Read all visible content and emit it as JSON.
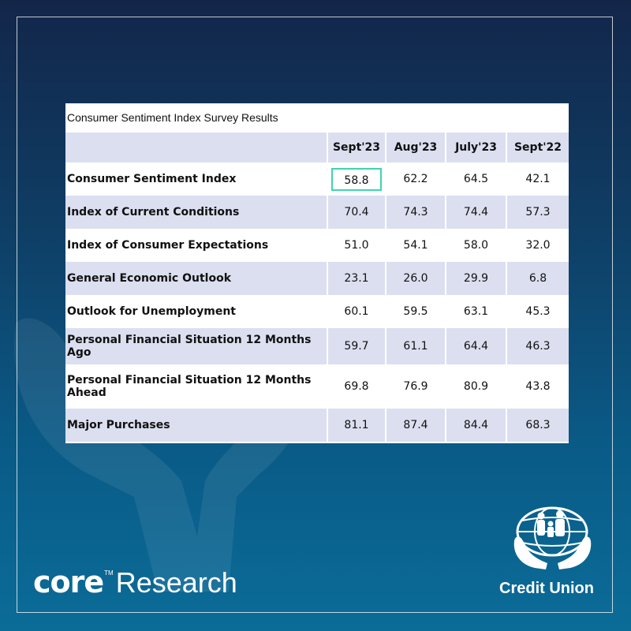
{
  "table": {
    "title": "Consumer Sentiment Index Survey Results",
    "columns": [
      "",
      "Sept'23",
      "Aug'23",
      "July'23",
      "Sept'22"
    ],
    "rows": [
      {
        "label": "Consumer Sentiment Index",
        "values": [
          "58.8",
          "62.2",
          "64.5",
          "42.1"
        ],
        "highlight_first": true
      },
      {
        "label": "Index of Current Conditions",
        "values": [
          "70.4",
          "74.3",
          "74.4",
          "57.3"
        ]
      },
      {
        "label": "Index of Consumer Expectations",
        "values": [
          "51.0",
          "54.1",
          "58.0",
          "32.0"
        ]
      },
      {
        "label": "General Economic Outlook",
        "values": [
          "23.1",
          "26.0",
          "29.9",
          "6.8"
        ]
      },
      {
        "label": "Outlook for Unemployment",
        "values": [
          "60.1",
          "59.5",
          "63.1",
          "45.3"
        ]
      },
      {
        "label": "Personal Financial Situation 12 Months Ago",
        "values": [
          "59.7",
          "61.1",
          "64.4",
          "46.3"
        ]
      },
      {
        "label": "Personal Financial Situation 12 Months Ahead",
        "values": [
          "69.8",
          "76.9",
          "80.9",
          "43.8"
        ]
      },
      {
        "label": "Major Purchases",
        "values": [
          "81.1",
          "87.4",
          "84.4",
          "68.3"
        ]
      }
    ]
  },
  "brand": {
    "core": "core",
    "tm": "TM",
    "research": "Research"
  },
  "credit_union": {
    "label": "Credit Union",
    "icon": "credit-union-logo-icon"
  },
  "colors": {
    "highlight": "#3fd3b0",
    "row_shade": "#dcdff0",
    "bg_top": "#13264a",
    "bg_bottom": "#0b6c98"
  }
}
